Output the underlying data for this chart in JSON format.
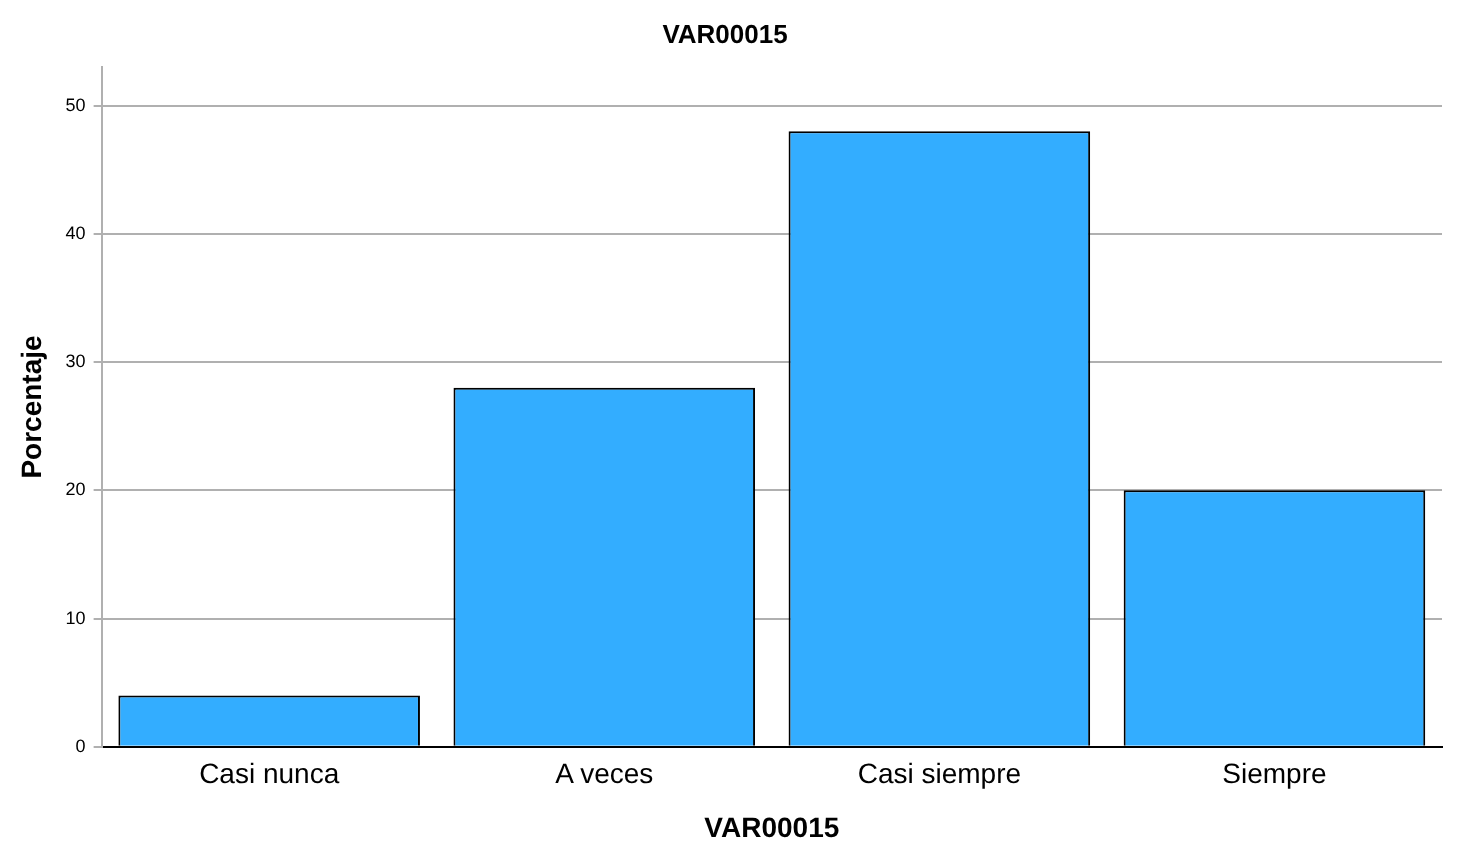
{
  "chart_data": {
    "type": "bar",
    "title": "VAR00015",
    "xlabel": "VAR00015",
    "ylabel": "Porcentaje",
    "categories": [
      "Casi nunca",
      "A veces",
      "Casi siempre",
      "Siempre"
    ],
    "values": [
      4,
      28,
      48,
      20
    ],
    "color": "#33adff",
    "ylim": [
      0,
      53
    ],
    "yticks": [
      0,
      10,
      20,
      30,
      40,
      50
    ],
    "grid": "y",
    "legend": false
  }
}
